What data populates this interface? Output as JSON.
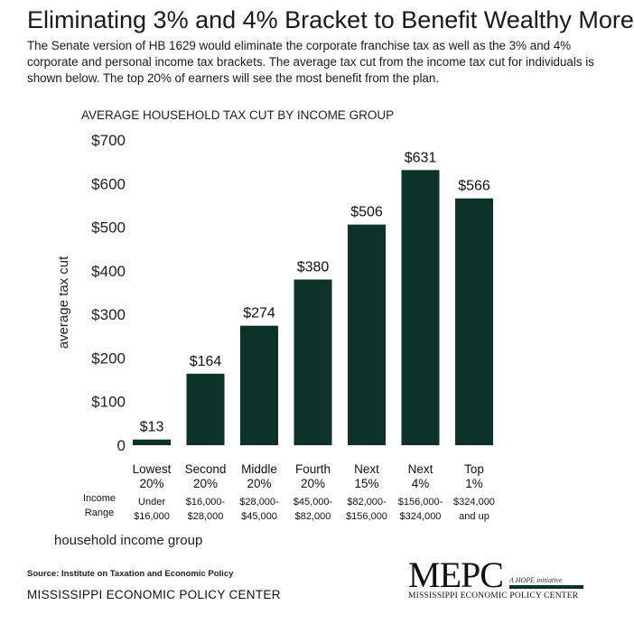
{
  "header": {
    "title": "Eliminating 3% and 4% Bracket to Benefit Wealthy More",
    "description": "The Senate version of HB 1629 would eliminate the corporate franchise tax as well as the 3% and 4% corporate and personal income tax brackets.  The average tax cut from the income tax cut for individuals is shown below.  The top 20% of earners will see the most benefit from the plan."
  },
  "chart_data": {
    "type": "bar",
    "title": "AVERAGE HOUSEHOLD TAX CUT BY INCOME GROUP",
    "ylabel": "average tax cut",
    "xlabel": "household income group",
    "ylim": [
      0,
      700
    ],
    "yticks": [
      "$700",
      "$600",
      "$500",
      "$400",
      "$300",
      "$200",
      "$100",
      "0"
    ],
    "ytick_values": [
      700,
      600,
      500,
      400,
      300,
      200,
      100,
      0
    ],
    "grid": false,
    "bar_color": "#0d3328",
    "categories": [
      [
        "Lowest",
        "20%"
      ],
      [
        "Second",
        "20%"
      ],
      [
        "Middle",
        "20%"
      ],
      [
        "Fourth",
        "20%"
      ],
      [
        "Next",
        "15%"
      ],
      [
        "Next",
        "4%"
      ],
      [
        "Top",
        "1%"
      ]
    ],
    "values": [
      13,
      164,
      274,
      380,
      506,
      631,
      566
    ],
    "data_labels": [
      "$13",
      "$164",
      "$274",
      "$380",
      "$506",
      "$631",
      "$566"
    ],
    "income_range_label": [
      "Income",
      "Range"
    ],
    "income_ranges": [
      [
        "Under",
        "$16,000"
      ],
      [
        "$16,000-",
        "$28,000"
      ],
      [
        "$28,000-",
        "$45,000"
      ],
      [
        "$45,000-",
        "$82,000"
      ],
      [
        "$82,000-",
        "$156,000"
      ],
      [
        "$156,000-",
        "$324,000"
      ],
      [
        "$324,000",
        "and up"
      ]
    ]
  },
  "footer": {
    "source": "Source: Institute on Taxation and Economic Policy",
    "org_name": "MISSISSIPPI ECONOMIC POLICY CENTER",
    "logo_mark": "MEPC",
    "logo_tagline": "A HOPE initiative",
    "logo_subtitle": "MISSISSIPPI ECONOMIC POLICY CENTER"
  }
}
